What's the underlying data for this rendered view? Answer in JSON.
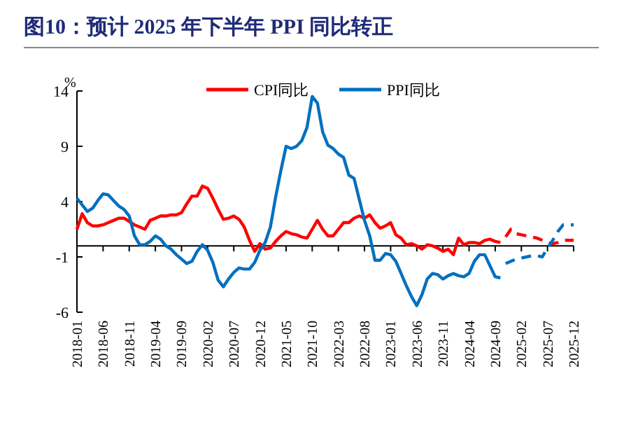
{
  "chart_data": {
    "type": "line",
    "title": "图10：预计 2025 年下半年 PPI 同比转正",
    "ylabel": "%",
    "x": [
      "2018-01",
      "2018-02",
      "2018-03",
      "2018-04",
      "2018-05",
      "2018-06",
      "2018-07",
      "2018-08",
      "2018-09",
      "2018-10",
      "2018-11",
      "2018-12",
      "2019-01",
      "2019-02",
      "2019-03",
      "2019-04",
      "2019-05",
      "2019-06",
      "2019-07",
      "2019-08",
      "2019-09",
      "2019-10",
      "2019-11",
      "2019-12",
      "2020-01",
      "2020-02",
      "2020-03",
      "2020-04",
      "2020-05",
      "2020-06",
      "2020-07",
      "2020-08",
      "2020-09",
      "2020-10",
      "2020-11",
      "2020-12",
      "2021-01",
      "2021-02",
      "2021-03",
      "2021-04",
      "2021-05",
      "2021-06",
      "2021-07",
      "2021-08",
      "2021-09",
      "2021-10",
      "2021-11",
      "2021-12",
      "2022-01",
      "2022-02",
      "2022-03",
      "2022-04",
      "2022-05",
      "2022-06",
      "2022-07",
      "2022-08",
      "2022-09",
      "2022-10",
      "2022-11",
      "2022-12",
      "2023-01",
      "2023-02",
      "2023-03",
      "2023-04",
      "2023-05",
      "2023-06",
      "2023-07",
      "2023-08",
      "2023-09",
      "2023-10",
      "2023-11",
      "2023-12",
      "2024-01",
      "2024-02",
      "2024-03",
      "2024-04",
      "2024-05",
      "2024-06",
      "2024-07",
      "2024-08",
      "2024-09",
      "2024-10"
    ],
    "series": [
      {
        "name": "CPI同比",
        "color": "#ff0000",
        "values": [
          1.5,
          2.9,
          2.1,
          1.8,
          1.8,
          1.9,
          2.1,
          2.3,
          2.5,
          2.5,
          2.2,
          1.9,
          1.7,
          1.5,
          2.3,
          2.5,
          2.7,
          2.7,
          2.8,
          2.8,
          3.0,
          3.8,
          4.5,
          4.5,
          5.4,
          5.2,
          4.3,
          3.3,
          2.4,
          2.5,
          2.7,
          2.4,
          1.7,
          0.5,
          -0.5,
          0.2,
          -0.3,
          -0.2,
          0.4,
          0.9,
          1.3,
          1.1,
          1.0,
          0.8,
          0.7,
          1.5,
          2.3,
          1.5,
          0.9,
          0.9,
          1.5,
          2.1,
          2.1,
          2.5,
          2.7,
          2.5,
          2.8,
          2.1,
          1.6,
          1.8,
          2.1,
          1.0,
          0.7,
          0.1,
          0.2,
          0.0,
          -0.3,
          0.1,
          0.0,
          -0.2,
          -0.5,
          -0.3,
          -0.8,
          0.7,
          0.1,
          0.3,
          0.3,
          0.2,
          0.5,
          0.6,
          0.4,
          0.3
        ]
      },
      {
        "name": "PPI同比",
        "color": "#0070c0",
        "values": [
          4.3,
          3.7,
          3.1,
          3.4,
          4.1,
          4.7,
          4.6,
          4.1,
          3.6,
          3.3,
          2.7,
          0.9,
          0.1,
          0.1,
          0.4,
          0.9,
          0.6,
          0.0,
          -0.3,
          -0.8,
          -1.2,
          -1.6,
          -1.4,
          -0.5,
          0.1,
          -0.4,
          -1.5,
          -3.1,
          -3.7,
          -3.0,
          -2.4,
          -2.0,
          -2.1,
          -2.1,
          -1.5,
          -0.4,
          0.3,
          1.7,
          4.4,
          6.8,
          9.0,
          8.8,
          9.0,
          9.5,
          10.7,
          13.5,
          12.9,
          10.3,
          9.1,
          8.8,
          8.3,
          8.0,
          6.4,
          6.1,
          4.2,
          2.3,
          0.9,
          -1.3,
          -1.3,
          -0.7,
          -0.8,
          -1.4,
          -2.5,
          -3.6,
          -4.6,
          -5.4,
          -4.4,
          -3.0,
          -2.5,
          -2.6,
          -3.0,
          -2.7,
          -2.5,
          -2.7,
          -2.8,
          -2.5,
          -1.4,
          -0.8,
          -0.8,
          -1.8,
          -2.8,
          -2.9
        ]
      },
      {
        "color": "#ff0000",
        "line_style": "dashed",
        "x": [
          "2024-11",
          "2024-12",
          "2025-01",
          "2025-02",
          "2025-03",
          "2025-04",
          "2025-05",
          "2025-06",
          "2025-07",
          "2025-08",
          "2025-09",
          "2025-10",
          "2025-11",
          "2025-12"
        ],
        "values": [
          0.8,
          1.5,
          1.1,
          1.0,
          0.9,
          0.8,
          0.7,
          0.5,
          0.3,
          0.2,
          0.3,
          0.5,
          0.5,
          0.5
        ]
      },
      {
        "color": "#0070c0",
        "line_style": "dashed",
        "x": [
          "2024-11",
          "2024-12",
          "2025-01",
          "2025-02",
          "2025-03",
          "2025-04",
          "2025-05",
          "2025-06",
          "2025-07",
          "2025-08",
          "2025-09",
          "2025-10",
          "2025-11",
          "2025-12"
        ],
        "values": [
          -1.6,
          -1.4,
          -1.2,
          -1.1,
          -1.0,
          -0.9,
          -0.9,
          -1.0,
          -0.2,
          0.5,
          1.3,
          1.9,
          1.9,
          1.9
        ]
      }
    ],
    "xlim": [
      "2018-01",
      "2025-12"
    ],
    "xticks": [
      "2018-01",
      "2018-06",
      "2018-11",
      "2019-04",
      "2019-09",
      "2020-02",
      "2020-07",
      "2020-12",
      "2021-05",
      "2021-10",
      "2022-03",
      "2022-08",
      "2023-01",
      "2023-06",
      "2023-11",
      "2024-04",
      "2024-09",
      "2025-02",
      "2025-07",
      "2025-12"
    ],
    "ylim": [
      -6,
      14
    ],
    "yticks": [
      -6,
      -1,
      4,
      9,
      14
    ],
    "legend": "top"
  }
}
